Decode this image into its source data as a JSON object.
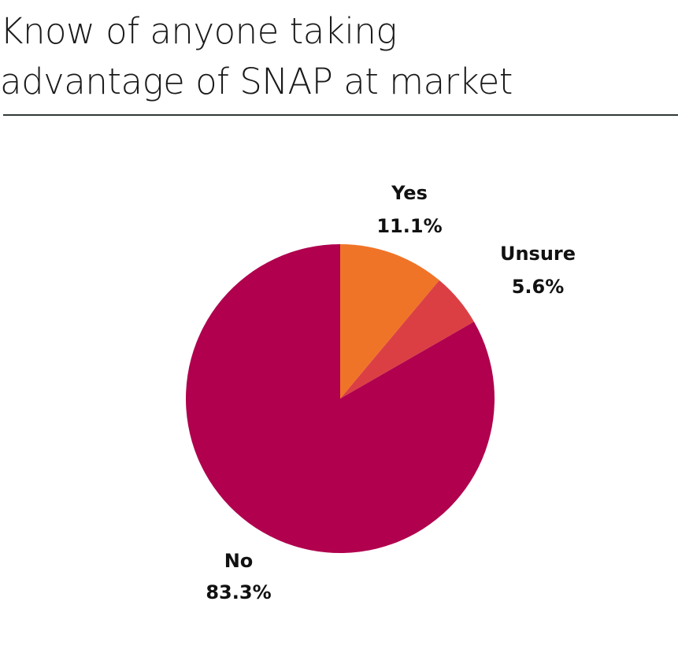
{
  "title": {
    "line1": "Know of anyone taking",
    "line2": "advantage of SNAP at market"
  },
  "chart_data": {
    "type": "pie",
    "title": "Know of anyone taking advantage of SNAP at market",
    "categories": [
      "Yes",
      "Unsure",
      "No"
    ],
    "values": [
      11.1,
      5.6,
      83.3
    ],
    "unit": "%",
    "value_labels": [
      "11.1%",
      "5.6%",
      "83.3%"
    ],
    "colors": [
      "#f07427",
      "#db3f44",
      "#b0004e"
    ],
    "start_angle": "12 o'clock",
    "direction": "clockwise",
    "legend": "none (labels placed beside slices)"
  }
}
